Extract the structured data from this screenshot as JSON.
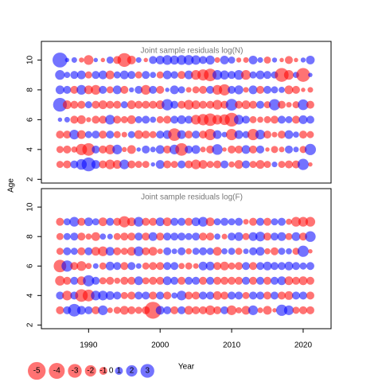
{
  "chart_data": [
    {
      "type": "bubble",
      "title": "Joint sample residuals log(N)",
      "ylabel": "Age",
      "x": [
        1986,
        1987,
        1988,
        1989,
        1990,
        1991,
        1992,
        1993,
        1994,
        1995,
        1996,
        1997,
        1998,
        1999,
        2000,
        2001,
        2002,
        2003,
        2004,
        2005,
        2006,
        2007,
        2008,
        2009,
        2010,
        2011,
        2012,
        2013,
        2014,
        2015,
        2016,
        2017,
        2018,
        2019,
        2020,
        2021
      ],
      "ages": [
        3,
        4,
        5,
        6,
        7,
        8,
        9,
        10
      ],
      "values": [
        [
          -0.8,
          -1.0,
          1.0,
          1.8,
          3.0,
          1.2,
          -1.0,
          -1.5,
          -1.2,
          1.5,
          -1.0,
          -0.8,
          -0.8,
          0.3,
          1.2,
          -1.0,
          -0.8,
          1.0,
          -1.0,
          -1.5,
          -1.2,
          -0.8,
          -1.0,
          1.0,
          -0.6,
          -1.2,
          1.0,
          -0.8,
          -1.2,
          -0.8,
          0.5,
          -0.8,
          -1.0,
          -1.0,
          2.0,
          -0.3
        ],
        [
          -0.8,
          -1.0,
          -0.6,
          -2.0,
          -2.5,
          1.0,
          -1.0,
          -1.5,
          1.5,
          -0.4,
          -1.2,
          0.3,
          1.0,
          0.5,
          1.2,
          -1.0,
          1.5,
          -2.5,
          1.0,
          1.2,
          -0.5,
          -1.0,
          1.8,
          -0.3,
          -1.0,
          -1.0,
          1.2,
          -1.0,
          1.0,
          -0.3,
          -0.8,
          -0.5,
          1.0,
          0.5,
          -0.8,
          2.0
        ],
        [
          -1.0,
          -1.0,
          1.5,
          -1.2,
          0.8,
          1.0,
          -1.0,
          1.0,
          -0.8,
          -0.5,
          0.8,
          -1.2,
          -1.0,
          -0.8,
          1.0,
          1.2,
          -2.5,
          1.2,
          -1.0,
          1.0,
          -1.0,
          -2.0,
          1.2,
          0.5,
          -2.0,
          1.2,
          0.8,
          -2.0,
          1.5,
          -1.0,
          -0.5,
          -1.0,
          1.2,
          0.6,
          -1.0,
          -0.8
        ],
        [
          0.3,
          0.5,
          -1.0,
          -1.2,
          -0.4,
          -1.0,
          -1.0,
          1.5,
          -1.0,
          -0.8,
          -1.2,
          0.8,
          1.0,
          0.6,
          -0.8,
          -1.0,
          1.0,
          1.2,
          1.0,
          -1.5,
          -2.0,
          -2.5,
          -1.5,
          -1.8,
          -3.0,
          1.5,
          1.0,
          -0.8,
          -0.6,
          -0.8,
          -1.0,
          1.0,
          0.8,
          -1.0,
          1.2,
          1.0
        ],
        [
          3.0,
          -1.2,
          -1.0,
          -1.0,
          0.8,
          -1.0,
          -1.2,
          -1.0,
          -1.0,
          0.8,
          -1.2,
          -1.0,
          -1.0,
          -1.0,
          -1.2,
          2.0,
          1.0,
          -1.0,
          -1.5,
          -1.2,
          -1.0,
          -1.0,
          -1.5,
          -1.0,
          2.2,
          -1.0,
          -1.2,
          -1.0,
          1.0,
          -0.8,
          2.0,
          -1.0,
          -0.5,
          -0.8,
          1.8,
          -1.0
        ],
        [
          1.2,
          1.0,
          -1.0,
          1.5,
          -1.2,
          -1.5,
          1.0,
          -0.8,
          1.2,
          -1.0,
          0.4,
          1.0,
          -1.5,
          1.0,
          -1.0,
          0.3,
          1.2,
          0.8,
          -0.5,
          -0.8,
          -1.0,
          1.0,
          -1.5,
          -2.0,
          1.0,
          1.3,
          -0.5,
          1.2,
          -1.0,
          1.0,
          0.8,
          0.6,
          -1.2,
          -1.0,
          -0.3,
          -0.5
        ],
        [
          1.5,
          0.6,
          1.0,
          1.2,
          -0.8,
          1.0,
          1.2,
          -1.2,
          0.8,
          1.2,
          1.0,
          -0.8,
          1.0,
          0.6,
          -0.8,
          1.2,
          0.9,
          -1.0,
          1.2,
          -1.5,
          -2.0,
          -2.5,
          1.5,
          1.3,
          1.0,
          1.5,
          -1.5,
          0.8,
          1.2,
          1.0,
          0.8,
          -3.0,
          -1.5,
          0.6,
          -3.0,
          0.3
        ],
        [
          3.5,
          0.3,
          0.5,
          -0.4,
          -1.5,
          0.3,
          -0.3,
          0.8,
          -1.0,
          -3.0,
          -1.2,
          0.5,
          -0.3,
          1.0,
          1.2,
          1.5,
          1.3,
          1.5,
          1.6,
          1.4,
          1.0,
          1.3,
          -0.5,
          1.2,
          0.8,
          -0.4,
          -0.5,
          1.2,
          0.5,
          -0.8,
          0.4,
          -0.3,
          -1.0,
          -0.3,
          0.4,
          1.2
        ]
      ],
      "positive_color": "#0000ff",
      "negative_color": "#ff0000",
      "xlim": [
        1983.4,
        2023.9
      ],
      "ylim": [
        1.75,
        11.25
      ],
      "yticks": [
        2,
        4,
        6,
        8,
        10
      ]
    },
    {
      "type": "bubble",
      "title": "Joint sample residuals log(F)",
      "xlabel": "Year",
      "x": [
        1986,
        1987,
        1988,
        1989,
        1990,
        1991,
        1992,
        1993,
        1994,
        1995,
        1996,
        1997,
        1998,
        1999,
        2000,
        2001,
        2002,
        2003,
        2004,
        2005,
        2006,
        2007,
        2008,
        2009,
        2010,
        2011,
        2012,
        2013,
        2014,
        2015,
        2016,
        2017,
        2018,
        2019,
        2020,
        2021
      ],
      "ages": [
        3,
        4,
        5,
        6,
        7,
        8,
        9
      ],
      "values": [
        [
          -1.0,
          1.0,
          2.5,
          1.2,
          1.0,
          -1.0,
          1.5,
          -0.5,
          -0.8,
          -1.2,
          -1.0,
          -0.8,
          -1.0,
          -4.5,
          1.2,
          1.0,
          -1.0,
          1.0,
          -1.2,
          -1.0,
          -1.0,
          -1.5,
          -1.0,
          1.0,
          -1.5,
          -0.6,
          -1.2,
          1.5,
          -0.5,
          -1.2,
          -0.3,
          2.0,
          1.5,
          -0.8,
          -1.0,
          -1.0
        ],
        [
          1.0,
          -1.5,
          1.0,
          -2.5,
          -2.2,
          1.5,
          1.5,
          1.2,
          1.0,
          -0.8,
          -1.0,
          1.0,
          1.0,
          -1.0,
          1.0,
          -1.0,
          0.6,
          1.5,
          -1.0,
          -1.0,
          1.0,
          1.0,
          -1.2,
          -1.0,
          1.0,
          1.0,
          -0.8,
          1.0,
          1.0,
          -1.0,
          1.0,
          -1.0,
          -1.2,
          1.0,
          1.0,
          -1.0
        ],
        [
          -1.5,
          -1.0,
          1.0,
          -1.2,
          2.0,
          1.0,
          -0.8,
          -1.0,
          -0.6,
          -1.0,
          -1.0,
          1.2,
          -0.8,
          -1.0,
          -1.0,
          1.2,
          1.0,
          -1.0,
          1.0,
          1.0,
          -1.0,
          1.0,
          -1.0,
          -1.0,
          -1.0,
          -1.0,
          1.0,
          -1.0,
          1.0,
          -1.0,
          1.0,
          1.2,
          -1.2,
          -1.0,
          -1.2,
          -1.0
        ],
        [
          -2.5,
          2.0,
          -1.0,
          -1.5,
          -0.6,
          0.5,
          -0.8,
          1.2,
          1.0,
          -1.0,
          1.0,
          0.5,
          -0.8,
          -1.0,
          -1.0,
          1.0,
          1.0,
          -0.6,
          -0.8,
          -0.5,
          1.2,
          1.2,
          -1.0,
          -1.2,
          -0.8,
          -1.0,
          1.0,
          -1.0,
          1.0,
          1.2,
          1.0,
          1.0,
          1.2,
          1.0,
          0.8,
          1.0
        ],
        [
          -0.8,
          1.0,
          0.8,
          -1.0,
          1.0,
          -1.2,
          -1.5,
          1.2,
          -1.0,
          -0.8,
          -1.2,
          1.5,
          -1.0,
          -1.2,
          -0.5,
          1.0,
          0.5,
          1.0,
          -0.6,
          0.8,
          1.0,
          0.8,
          -1.2,
          0.6,
          0.8,
          -0.8,
          0.5,
          1.0,
          1.2,
          -0.6,
          -1.0,
          0.8,
          0.6,
          -0.8,
          2.0,
          -0.3
        ],
        [
          -0.8,
          0.8,
          1.0,
          -1.0,
          -0.6,
          -1.2,
          0.6,
          0.5,
          -0.8,
          -1.0,
          -1.0,
          1.0,
          -1.0,
          1.2,
          -1.0,
          1.0,
          1.0,
          1.0,
          0.8,
          1.0,
          -1.0,
          -1.0,
          0.6,
          -0.5,
          1.0,
          1.2,
          -0.8,
          1.2,
          1.5,
          -1.0,
          1.0,
          1.2,
          -0.8,
          1.2,
          -1.0,
          1.8
        ],
        [
          -1.0,
          0.8,
          1.5,
          -1.0,
          1.2,
          0.8,
          -1.2,
          1.0,
          -1.0,
          -2.0,
          -1.2,
          1.5,
          -1.0,
          -1.0,
          1.2,
          -1.2,
          1.0,
          1.0,
          -1.0,
          1.2,
          1.5,
          -1.2,
          0.8,
          1.0,
          0.8,
          1.0,
          -0.5,
          -1.0,
          1.0,
          -1.0,
          0.8,
          1.0,
          -0.6,
          -1.5,
          -1.5,
          -1.5
        ]
      ],
      "positive_color": "#0000ff",
      "negative_color": "#ff0000",
      "xlim": [
        1983.4,
        2023.9
      ],
      "ylim": [
        1.75,
        11.25
      ],
      "yticks": [
        2,
        4,
        6,
        8,
        10
      ],
      "xticks": [
        1990,
        2000,
        2010,
        2020
      ],
      "size_legend": [
        -5,
        -4,
        -3,
        -2,
        -1,
        0,
        1,
        2,
        3
      ]
    }
  ]
}
